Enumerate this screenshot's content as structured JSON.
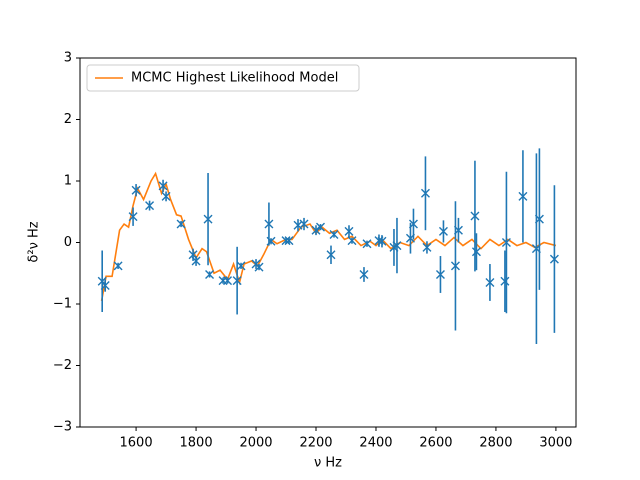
{
  "chart_data": {
    "type": "line",
    "xlabel": "ν Hz",
    "ylabel": "δ²ν Hz",
    "xlim": [
      1413,
      3067
    ],
    "ylim": [
      -3,
      3
    ],
    "xticks": [
      1600,
      1800,
      2000,
      2200,
      2400,
      2600,
      2800,
      3000
    ],
    "yticks": [
      {
        "value": -3,
        "label": "−3"
      },
      {
        "value": -2,
        "label": "−2"
      },
      {
        "value": -1,
        "label": "−1"
      },
      0,
      1,
      2,
      3
    ],
    "legend": "upper left",
    "series": [
      {
        "name": "MCMC Highest Likelihood Model",
        "type": "line",
        "color": "#ff7f0e",
        "x": [
          1485,
          1500,
          1520,
          1545,
          1560,
          1575,
          1590,
          1605,
          1625,
          1650,
          1665,
          1685,
          1700,
          1715,
          1735,
          1750,
          1775,
          1800,
          1820,
          1835,
          1860,
          1880,
          1905,
          1925,
          1945,
          1960,
          1985,
          2005,
          2025,
          2050,
          2070,
          2100,
          2120,
          2150,
          2180,
          2200,
          2220,
          2245,
          2270,
          2295,
          2320,
          2350,
          2380,
          2400,
          2420,
          2450,
          2480,
          2510,
          2540,
          2570,
          2600,
          2630,
          2660,
          2690,
          2720,
          2750,
          2780,
          2810,
          2840,
          2870,
          2900,
          2930,
          2960,
          3000
        ],
        "values": [
          -0.95,
          -0.55,
          -0.55,
          0.2,
          0.3,
          0.25,
          0.6,
          0.88,
          0.7,
          1.0,
          1.12,
          0.8,
          0.95,
          0.7,
          0.45,
          0.43,
          0.05,
          -0.25,
          -0.1,
          -0.15,
          -0.5,
          -0.45,
          -0.6,
          -0.35,
          -0.65,
          -0.35,
          -0.3,
          -0.38,
          -0.2,
          0.05,
          -0.02,
          0.05,
          0.05,
          0.25,
          0.3,
          0.15,
          0.25,
          0.15,
          0.2,
          0.05,
          0.1,
          -0.05,
          0.02,
          -0.05,
          0.05,
          -0.1,
          0.0,
          -0.05,
          0.1,
          -0.05,
          0.05,
          -0.05,
          0.08,
          -0.05,
          0.05,
          -0.1,
          0.05,
          -0.05,
          0.05,
          -0.05,
          0.0,
          -0.08,
          0.0,
          -0.05
        ]
      },
      {
        "type": "errorbar",
        "color": "#1f77b4",
        "x": [
          1487,
          1497,
          1540,
          1590,
          1600,
          1645,
          1690,
          1700,
          1750,
          1790,
          1800,
          1840,
          1845,
          1890,
          1905,
          1937,
          1950,
          2000,
          2010,
          2043,
          2050,
          2100,
          2110,
          2140,
          2160,
          2200,
          2215,
          2250,
          2260,
          2310,
          2320,
          2360,
          2370,
          2410,
          2420,
          2460,
          2470,
          2515,
          2525,
          2565,
          2570,
          2615,
          2625,
          2665,
          2675,
          2730,
          2735,
          2780,
          2830,
          2835,
          2890,
          2935,
          2945,
          2995
        ],
        "values": [
          -0.63,
          -0.7,
          -0.38,
          0.42,
          0.85,
          0.6,
          0.92,
          0.75,
          0.3,
          -0.2,
          -0.3,
          0.38,
          -0.52,
          -0.62,
          -0.62,
          -0.62,
          -0.38,
          -0.35,
          -0.4,
          0.3,
          0.02,
          0.03,
          0.03,
          0.28,
          0.3,
          0.2,
          0.25,
          -0.2,
          0.13,
          0.18,
          0.03,
          -0.52,
          -0.02,
          0.03,
          0.02,
          -0.08,
          -0.05,
          0.07,
          0.3,
          0.8,
          -0.08,
          -0.52,
          0.18,
          -0.38,
          0.2,
          0.43,
          -0.15,
          -0.65,
          -0.63,
          0.0,
          0.75,
          -0.1,
          0.38,
          -0.27
        ],
        "errors": [
          0.5,
          0.1,
          0.05,
          0.15,
          0.1,
          0.08,
          0.1,
          0.08,
          0.05,
          0.1,
          0.08,
          0.75,
          0.05,
          0.05,
          0.05,
          0.55,
          0.05,
          0.08,
          0.05,
          0.35,
          0.05,
          0.05,
          0.05,
          0.1,
          0.1,
          0.08,
          0.05,
          0.15,
          0.05,
          0.1,
          0.05,
          0.12,
          0.05,
          0.1,
          0.1,
          0.3,
          0.45,
          0.25,
          0.25,
          0.6,
          0.1,
          0.3,
          0.18,
          1.05,
          0.2,
          0.9,
          0.3,
          0.3,
          0.5,
          1.15,
          0.75,
          1.55,
          1.15,
          1.2
        ]
      }
    ]
  }
}
